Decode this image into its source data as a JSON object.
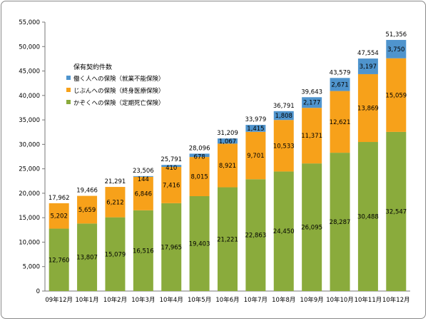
{
  "chart_data": {
    "type": "bar",
    "stacked": true,
    "legend_title": "保有契約件数",
    "legend_position": "top-left",
    "categories": [
      "09年12月",
      "10年1月",
      "10年2月",
      "10年3月",
      "10年4月",
      "10年5月",
      "10年6月",
      "10年7月",
      "10年8月",
      "10年9月",
      "10年10月",
      "10年11月",
      "10年12月"
    ],
    "series": [
      {
        "name": "かぞくへの保険（定期死亡保険）",
        "color": "#8aab3c",
        "values": [
          12760,
          13807,
          15079,
          16516,
          17965,
          19403,
          21221,
          22863,
          24450,
          26095,
          28287,
          30488,
          32547
        ],
        "labels": [
          "12,760",
          "13,807",
          "15,079",
          "16,516",
          "17,965",
          "19,403",
          "21,221",
          "22,863",
          "24,450",
          "26,095",
          "28,287",
          "30,488",
          "32,547"
        ]
      },
      {
        "name": "じぶんへの保険（終身医療保険）",
        "color": "#f7a11a",
        "values": [
          5202,
          5659,
          6212,
          6846,
          7416,
          8015,
          8921,
          9701,
          10533,
          11371,
          12621,
          13869,
          15059
        ],
        "labels": [
          "5,202",
          "5,659",
          "6,212",
          "6,846",
          "7,416",
          "8,015",
          "8,921",
          "9,701",
          "10,533",
          "11,371",
          "12,621",
          "13,869",
          "15,059"
        ]
      },
      {
        "name": "働く人への保険（就業不能保険）",
        "color": "#4f94cd",
        "values": [
          0,
          0,
          0,
          144,
          410,
          678,
          1067,
          1415,
          1808,
          2177,
          2671,
          3197,
          3750
        ],
        "labels": [
          "",
          "",
          "",
          "144",
          "410",
          "678",
          "1,067",
          "1,415",
          "1,808",
          "2,177",
          "2,671",
          "3,197",
          "3,750"
        ]
      }
    ],
    "totals": [
      "17,962",
      "19,466",
      "21,291",
      "23,506",
      "25,791",
      "28,096",
      "31,209",
      "33,979",
      "36,791",
      "39,643",
      "43,579",
      "47,554",
      "51,356"
    ],
    "ylim": [
      0,
      55000
    ],
    "yticks": [
      "0",
      "5,000",
      "10,000",
      "15,000",
      "20,000",
      "25,000",
      "30,000",
      "35,000",
      "40,000",
      "45,000",
      "50,000",
      "55,000"
    ],
    "legend_order": [
      2,
      1,
      0
    ],
    "grid": false
  }
}
